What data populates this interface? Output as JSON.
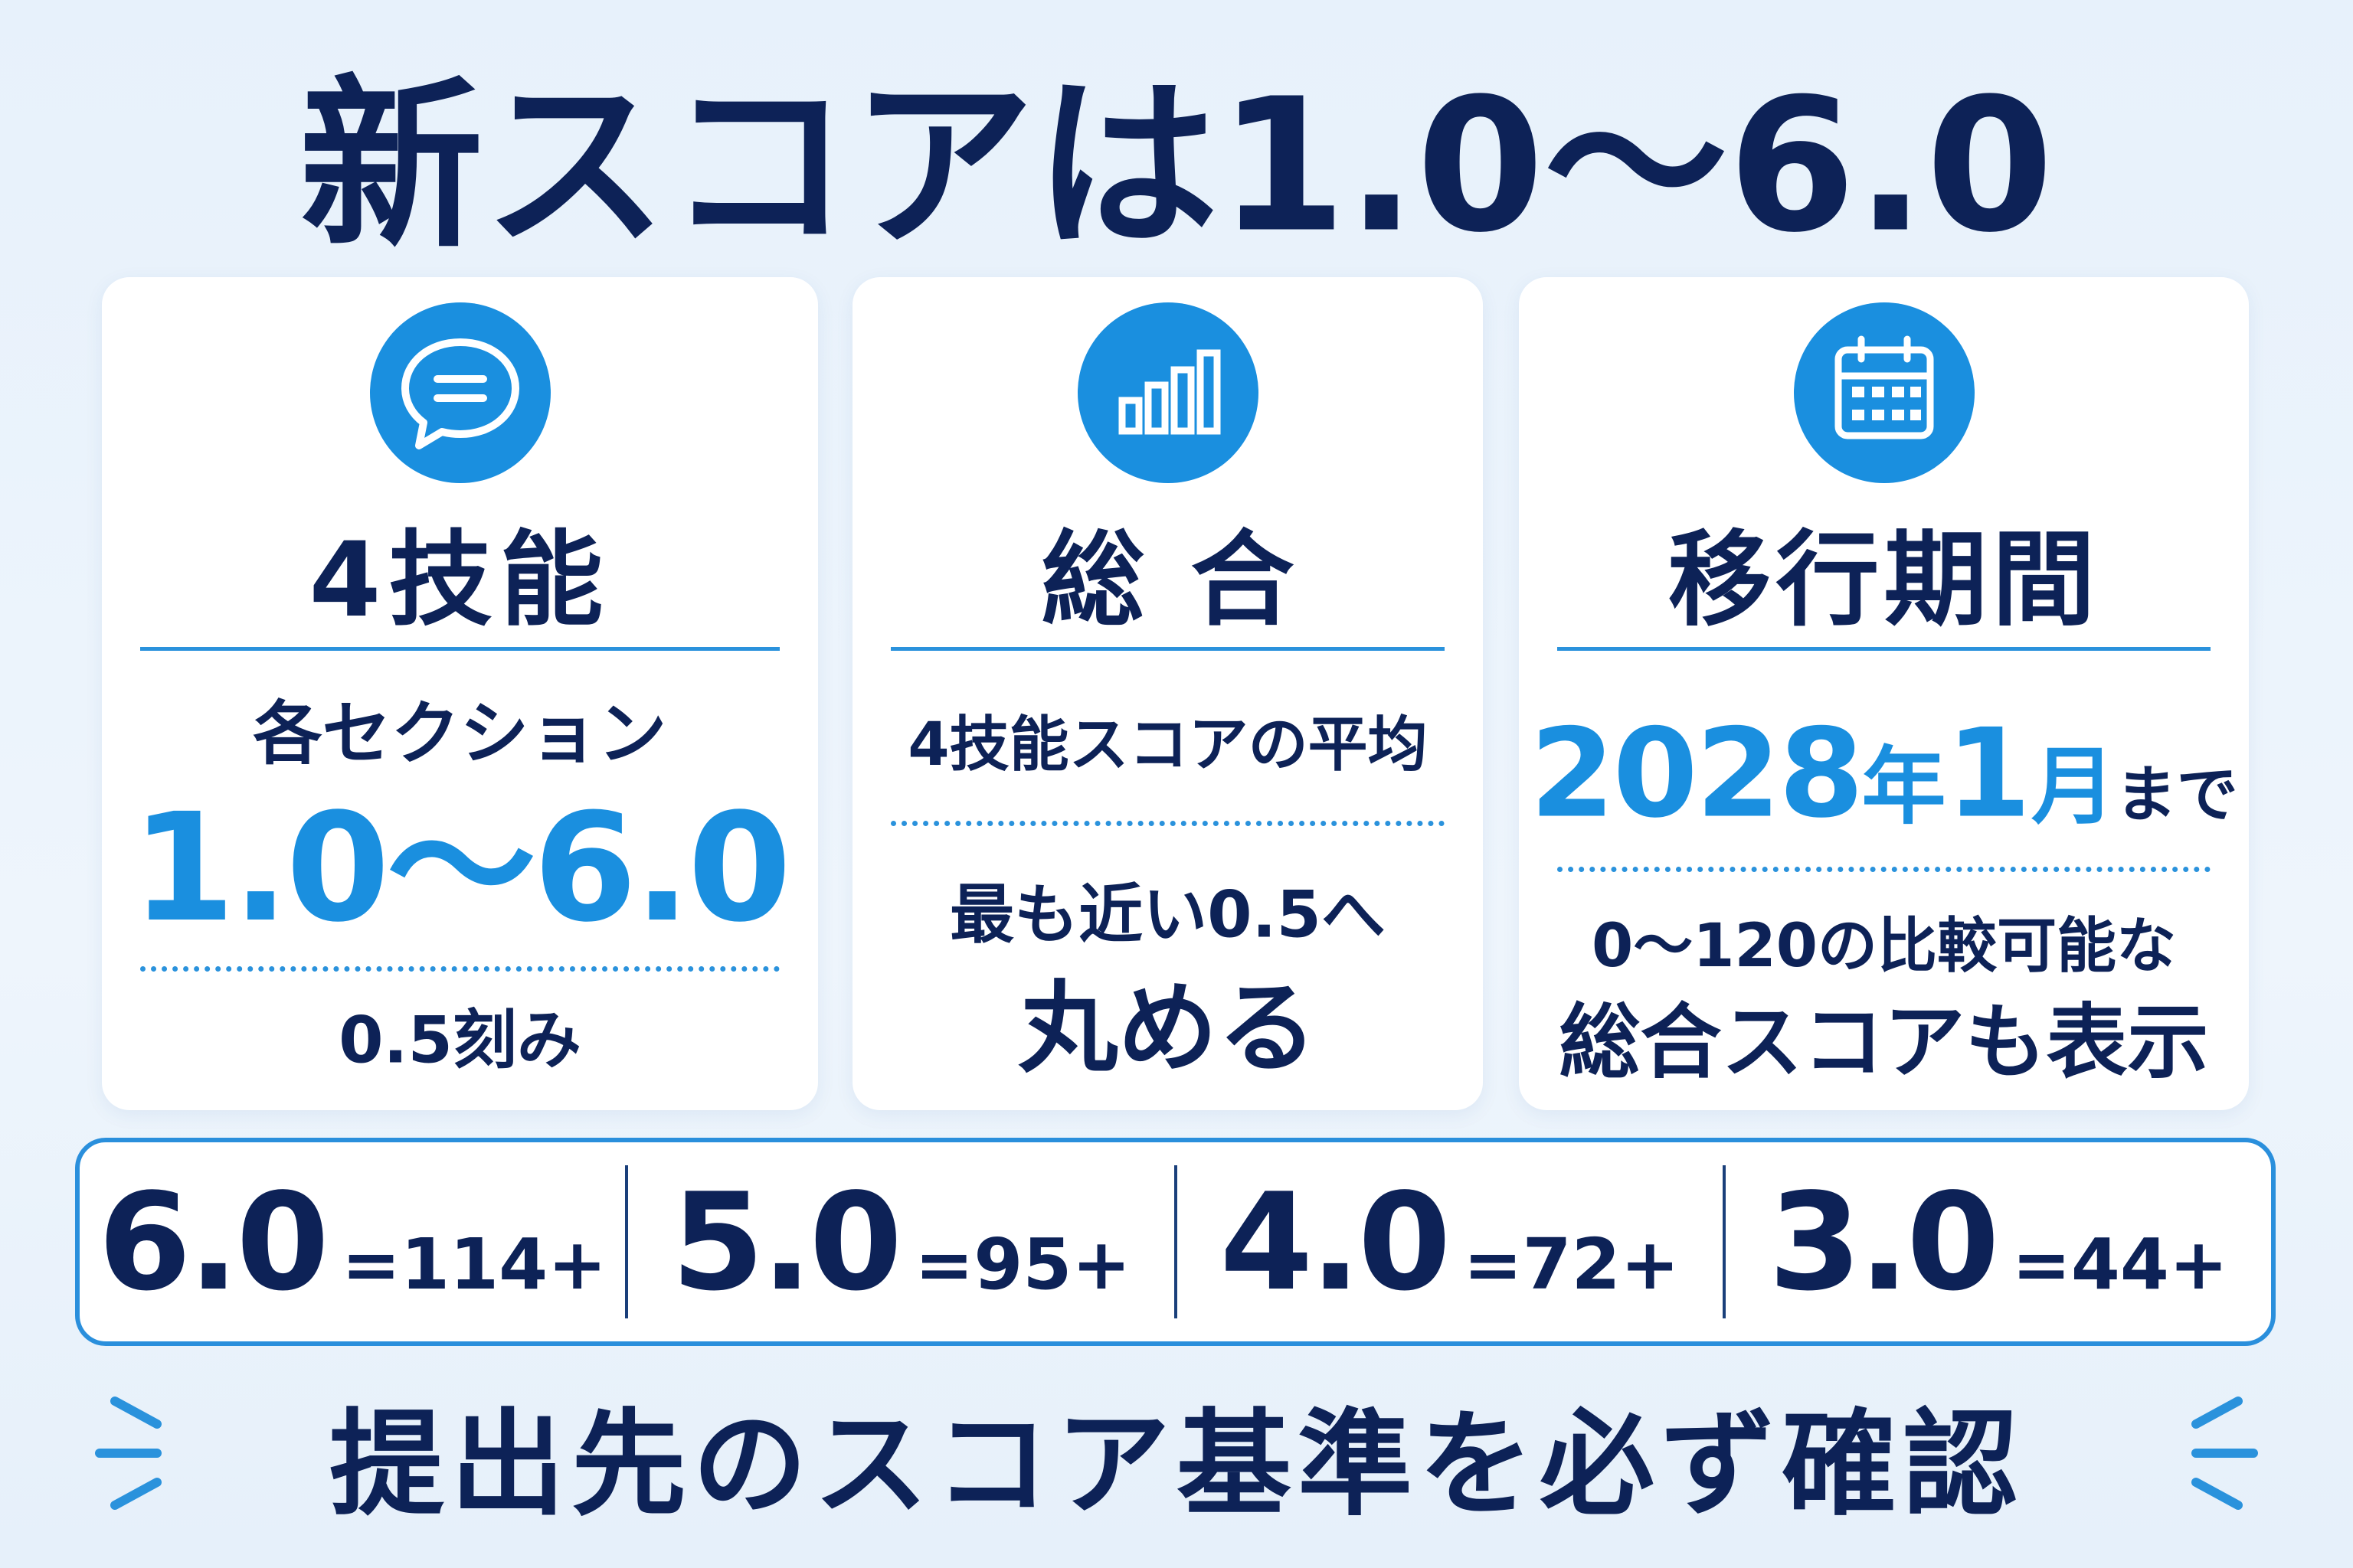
{
  "title": "新スコアは1.0～6.0",
  "cards": [
    {
      "heading": "4技能",
      "lines": [
        "各セクション",
        "1.0～6.0",
        "0.5刻み"
      ]
    },
    {
      "heading": "総合",
      "lines": [
        "4技能スコアの平均",
        "最も近い0.5へ",
        "丸める"
      ]
    },
    {
      "heading": "移行期間",
      "lines": [
        [
          "2028",
          "年",
          "1",
          "月",
          "まで"
        ],
        "0～120の比較可能な",
        "総合スコアも表示"
      ]
    }
  ],
  "conversions": [
    {
      "score": "6.0",
      "equals": "=114+"
    },
    {
      "score": "5.0",
      "equals": "=95+"
    },
    {
      "score": "4.0",
      "equals": "=72+"
    },
    {
      "score": "3.0",
      "equals": "=44+"
    }
  ],
  "footer": "提出先のスコア基準を必ず確認"
}
